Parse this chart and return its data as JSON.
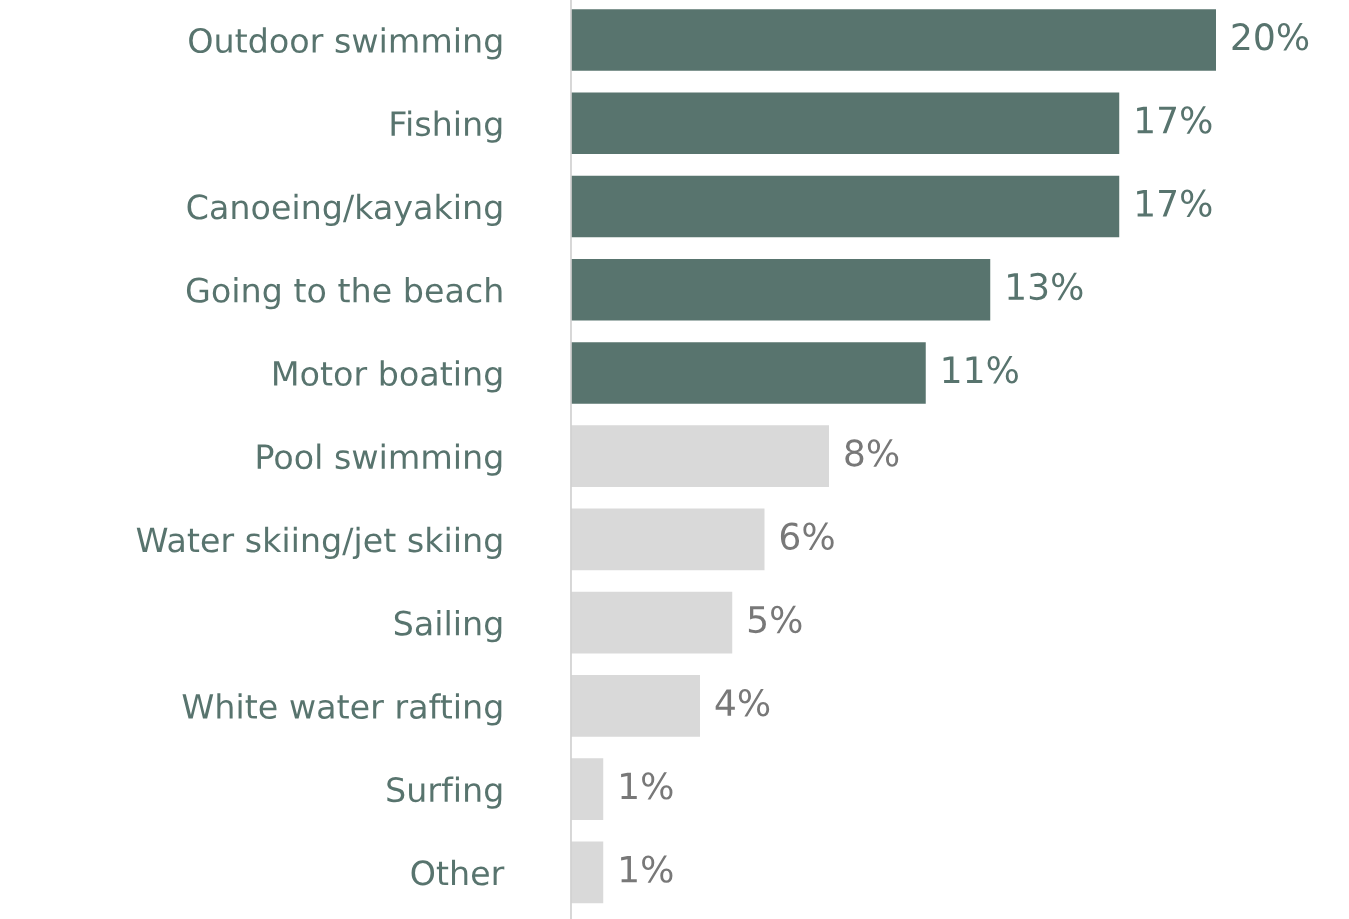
{
  "chart_data": {
    "type": "bar",
    "orientation": "horizontal",
    "categories": [
      "Outdoor swimming",
      "Fishing",
      "Canoeing/kayaking",
      "Going to the beach",
      "Motor boating",
      "Pool swimming",
      "Water skiing/jet skiing",
      "Sailing",
      "White water rafting",
      "Surfing",
      "Other"
    ],
    "values": [
      20,
      17,
      17,
      13,
      11,
      8,
      6,
      5,
      4,
      1,
      1
    ],
    "value_labels": [
      "20%",
      "17%",
      "17%",
      "13%",
      "11%",
      "8%",
      "6%",
      "5%",
      "4%",
      "1%",
      "1%"
    ],
    "colors": [
      "#58746e",
      "#58746e",
      "#58746e",
      "#58746e",
      "#58746e",
      "#d9d9d9",
      "#d9d9d9",
      "#d9d9d9",
      "#d9d9d9",
      "#d9d9d9",
      "#d9d9d9"
    ],
    "relative": false
  }
}
